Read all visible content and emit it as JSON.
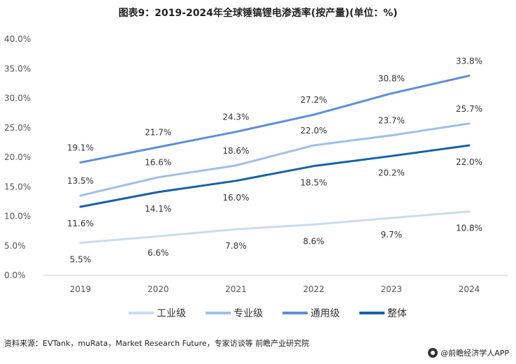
{
  "chart_data": {
    "type": "line",
    "title": "图表9：2019-2024年全球锤镐锂电渗透率(按产量)(单位：%)",
    "x": [
      "2019",
      "2020",
      "2021",
      "2022",
      "2023",
      "2024"
    ],
    "ylim": [
      0,
      40
    ],
    "yticks": [
      "0.0%",
      "5.0%",
      "10.0%",
      "15.0%",
      "20.0%",
      "25.0%",
      "30.0%",
      "35.0%",
      "40.0%"
    ],
    "grid": false,
    "legend_position": "bottom",
    "series": [
      {
        "name": "工业级",
        "color": "#c9dcf4",
        "values": [
          5.5,
          6.6,
          7.8,
          8.6,
          9.7,
          10.8
        ],
        "labels": [
          "5.5%",
          "6.6%",
          "7.8%",
          "8.6%",
          "9.7%",
          "10.8%"
        ],
        "label_side": "below"
      },
      {
        "name": "专业级",
        "color": "#9dbfec",
        "values": [
          13.5,
          16.6,
          18.6,
          22.0,
          23.7,
          25.7
        ],
        "labels": [
          "13.5%",
          "16.6%",
          "18.6%",
          "22.0%",
          "23.7%",
          "25.7%"
        ],
        "label_side": "above"
      },
      {
        "name": "通用级",
        "color": "#5b8fdb",
        "values": [
          19.1,
          21.7,
          24.3,
          27.2,
          30.8,
          33.8
        ],
        "labels": [
          "19.1%",
          "21.7%",
          "24.3%",
          "27.2%",
          "30.8%",
          "33.8%"
        ],
        "label_side": "above"
      },
      {
        "name": "整体",
        "color": "#1562a8",
        "values": [
          11.6,
          14.1,
          16.0,
          18.5,
          20.2,
          22.0
        ],
        "labels": [
          "11.6%",
          "14.1%",
          "16.0%",
          "18.5%",
          "20.2%",
          "22.0%"
        ],
        "label_side": "below"
      }
    ]
  },
  "footer": {
    "source": "资料来源：EVTank，muRata，Market Research Future，专家访谈等 前瞻产业研究院",
    "brand": "@前瞻经济学人APP"
  }
}
